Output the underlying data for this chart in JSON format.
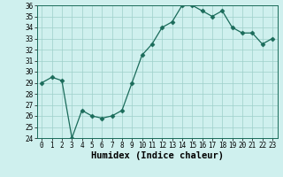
{
  "x": [
    0,
    1,
    2,
    3,
    4,
    5,
    6,
    7,
    8,
    9,
    10,
    11,
    12,
    13,
    14,
    15,
    16,
    17,
    18,
    19,
    20,
    21,
    22,
    23
  ],
  "y": [
    29,
    29.5,
    29.2,
    24,
    26.5,
    26,
    25.8,
    26,
    26.5,
    29,
    31.5,
    32.5,
    34,
    34.5,
    36,
    36,
    35.5,
    35,
    35.5,
    34,
    33.5,
    33.5,
    32.5,
    33
  ],
  "line_color": "#1a6b5a",
  "marker": "D",
  "marker_size": 2.5,
  "bg_color": "#cff0ee",
  "grid_color": "#9ecfca",
  "xlabel": "Humidex (Indice chaleur)",
  "ylim": [
    24,
    36
  ],
  "xlim": [
    -0.5,
    23.5
  ],
  "yticks": [
    24,
    25,
    26,
    27,
    28,
    29,
    30,
    31,
    32,
    33,
    34,
    35,
    36
  ],
  "xticks": [
    0,
    1,
    2,
    3,
    4,
    5,
    6,
    7,
    8,
    9,
    10,
    11,
    12,
    13,
    14,
    15,
    16,
    17,
    18,
    19,
    20,
    21,
    22,
    23
  ],
  "tick_fontsize": 5.5,
  "xlabel_fontsize": 7.5,
  "xlabel_bold": true
}
